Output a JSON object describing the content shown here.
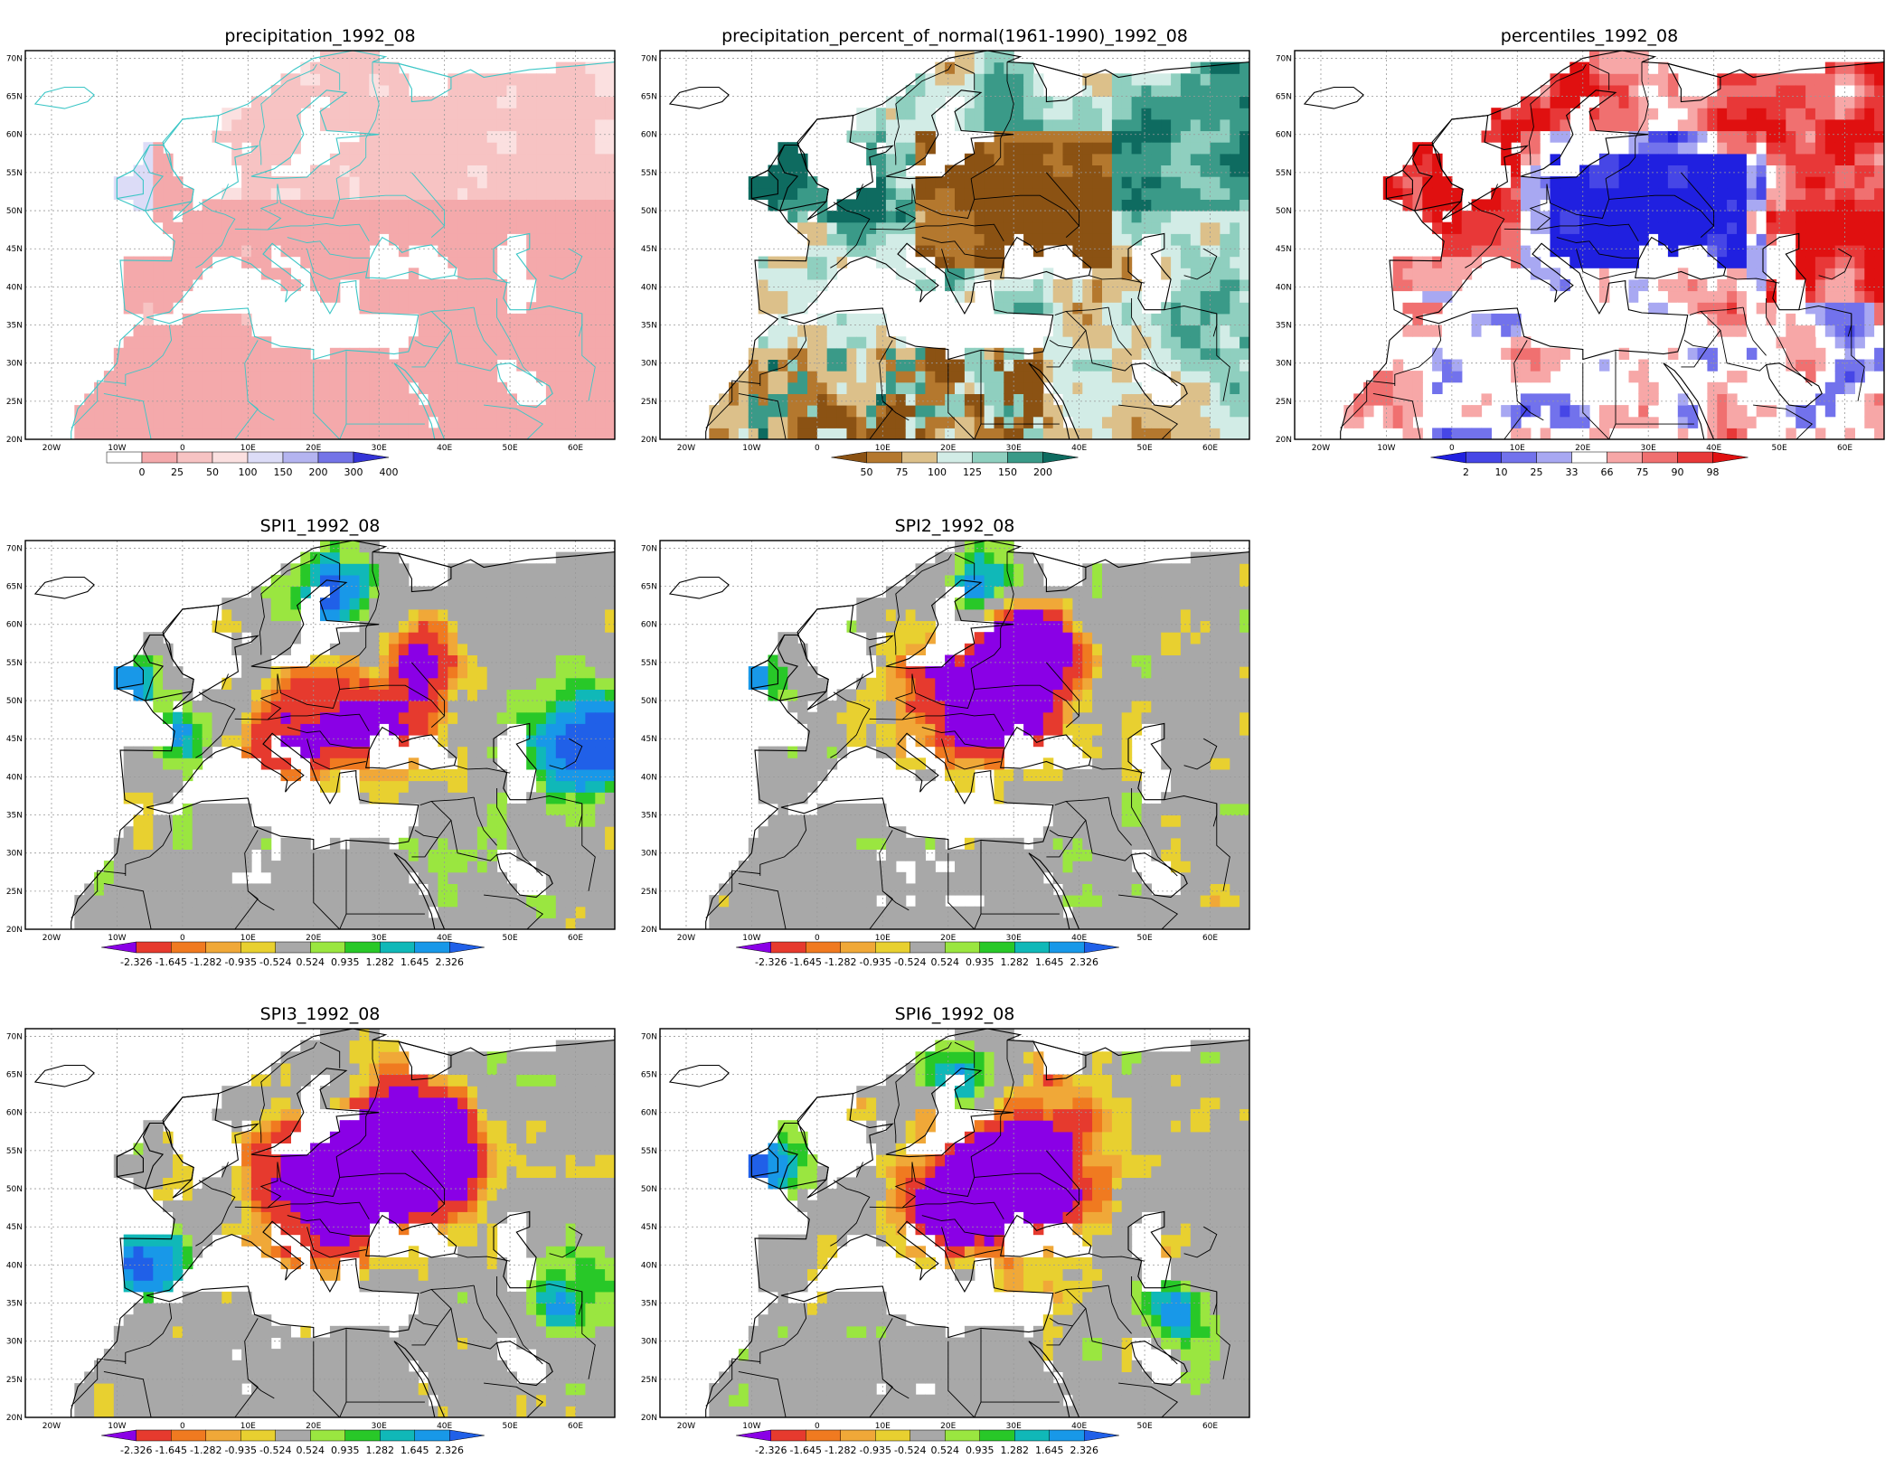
{
  "panels": [
    {
      "id": "precip",
      "title": "precipitation_1992_08",
      "kind": "precip",
      "legend": {
        "labels": [
          "0",
          "25",
          "50",
          "100",
          "150",
          "200",
          "300",
          "400"
        ],
        "colors": [
          "#ffffff",
          "#f4a9ab",
          "#f7c3c3",
          "#fbe0e0",
          "#dcdcf7",
          "#b4b4f0",
          "#7474e7",
          "#3434d7"
        ],
        "left_arrow": false,
        "right_arrow": true
      }
    },
    {
      "id": "pct",
      "title": "precipitation_percent_of_normal(1961-1990)_1992_08",
      "kind": "pct",
      "legend": {
        "labels": [
          "50",
          "75",
          "100",
          "125",
          "150",
          "200"
        ],
        "colors": [
          "#8b5213",
          "#b4782e",
          "#dcc08a",
          "#d2ece6",
          "#8fcfbf",
          "#3a9a88",
          "#0e6b60"
        ],
        "left_arrow": true,
        "right_arrow": true
      }
    },
    {
      "id": "perc",
      "title": "percentiles_1992_08",
      "kind": "perc",
      "legend": {
        "labels": [
          "2",
          "10",
          "25",
          "33",
          "66",
          "75",
          "90",
          "98"
        ],
        "colors": [
          "#2020e0",
          "#4646e6",
          "#7272ec",
          "#a8a8f2",
          "#ffffff",
          "#f7a7a7",
          "#f07070",
          "#e83838",
          "#e01010"
        ],
        "left_arrow": true,
        "right_arrow": true
      }
    },
    {
      "id": "spi1",
      "title": "SPI1_1992_08",
      "kind": "spi",
      "variant": 1
    },
    {
      "id": "spi2",
      "title": "SPI2_1992_08",
      "kind": "spi",
      "variant": 2
    },
    {
      "id": "spi3",
      "title": "SPI3_1992_08",
      "kind": "spi",
      "variant": 3
    },
    {
      "id": "spi6",
      "title": "SPI6_1992_08",
      "kind": "spi",
      "variant": 6
    }
  ],
  "spi_legend": {
    "labels": [
      "-2.326",
      "-1.645",
      "-1.282",
      "-0.935",
      "-0.524",
      "0.524",
      "0.935",
      "1.282",
      "1.645",
      "2.326"
    ],
    "colors": [
      "#8a00e6",
      "#e63a2e",
      "#f07a20",
      "#f0a838",
      "#e8d030",
      "#a8a8a8",
      "#9ae640",
      "#28c828",
      "#10b8b8",
      "#1898e8",
      "#2060e8"
    ],
    "left_arrow": true,
    "right_arrow": true
  },
  "axes": {
    "lat_labels": [
      "70N",
      "65N",
      "60N",
      "55N",
      "50N",
      "45N",
      "40N",
      "35N",
      "30N",
      "25N",
      "20N"
    ],
    "lon_labels": [
      "20W",
      "10W",
      "0",
      "10E",
      "20E",
      "30E",
      "40E",
      "50E",
      "60E"
    ]
  }
}
